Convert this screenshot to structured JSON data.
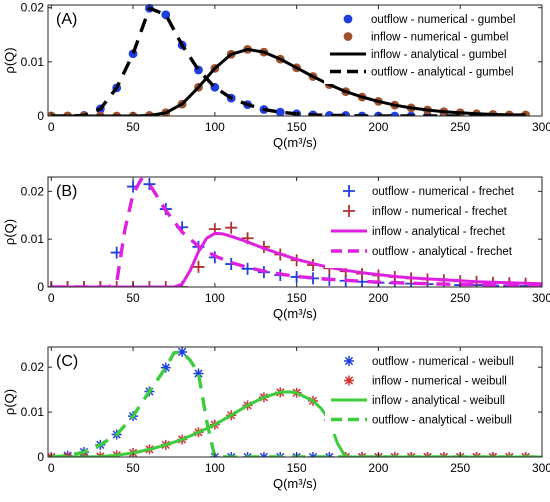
{
  "chart_data": [
    {
      "type": "line",
      "panel_label": "(A)",
      "xlabel": "Q(m³/s)",
      "ylabel": "ρ(Q)",
      "xlim": [
        -2,
        300
      ],
      "ylim": [
        0,
        0.0205
      ],
      "xticks": [
        0,
        50,
        100,
        150,
        200,
        250,
        300
      ],
      "yticks": [
        0,
        0.01,
        0.02
      ],
      "ytick_labels": [
        "0",
        "0.01",
        "0.02"
      ],
      "legend_position": "top-right",
      "series": [
        {
          "name": "outflow - numerical - gumbel",
          "kind": "marker",
          "marker": "circle",
          "color": "#1f3fe0",
          "x": [
            0,
            10,
            20,
            30,
            40,
            50,
            60,
            70,
            80,
            90,
            100,
            110,
            120,
            130,
            140,
            150,
            160,
            170,
            180,
            190,
            200,
            210,
            220,
            230,
            240,
            250,
            260,
            270,
            280,
            290
          ],
          "y": [
            0,
            0,
            0.0001,
            0.0013,
            0.0052,
            0.0115,
            0.0199,
            0.0187,
            0.0131,
            0.0085,
            0.0053,
            0.0033,
            0.0021,
            0.0012,
            0.0007,
            0.0004,
            0.0002,
            0.0001,
            0.0001,
            0,
            0,
            0,
            0,
            0,
            0,
            0,
            0,
            0,
            0,
            0
          ]
        },
        {
          "name": "inflow - numerical - gumbel",
          "kind": "marker",
          "marker": "circle",
          "color": "#a0522d",
          "x": [
            0,
            10,
            20,
            30,
            40,
            50,
            60,
            70,
            80,
            90,
            100,
            110,
            120,
            130,
            140,
            150,
            160,
            170,
            180,
            190,
            200,
            210,
            220,
            230,
            240,
            250,
            260,
            270,
            280,
            290
          ],
          "y": [
            0,
            0,
            0,
            0,
            0,
            0,
            0.0001,
            0.0006,
            0.0022,
            0.0053,
            0.0088,
            0.0114,
            0.0123,
            0.0118,
            0.0105,
            0.0089,
            0.0073,
            0.0058,
            0.0045,
            0.0035,
            0.0027,
            0.002,
            0.0015,
            0.0011,
            0.0008,
            0.0006,
            0.0004,
            0.0003,
            0.0002,
            0.0002
          ]
        },
        {
          "name": "inflow - analytical - gumbel",
          "kind": "line",
          "dash": "solid",
          "color": "#000000",
          "x": [
            0,
            10,
            20,
            30,
            40,
            50,
            60,
            70,
            80,
            90,
            100,
            110,
            120,
            130,
            140,
            150,
            160,
            170,
            180,
            190,
            200,
            210,
            220,
            230,
            240,
            250,
            260,
            270,
            280,
            290
          ],
          "y": [
            0,
            0,
            0,
            0,
            0,
            0,
            0.0001,
            0.0006,
            0.0022,
            0.0053,
            0.0088,
            0.0114,
            0.0123,
            0.0118,
            0.0105,
            0.0089,
            0.0073,
            0.0058,
            0.0045,
            0.0035,
            0.0027,
            0.002,
            0.0015,
            0.0011,
            0.0008,
            0.0006,
            0.0004,
            0.0003,
            0.0002,
            0.0002
          ]
        },
        {
          "name": "outflow - analytical - gumbel",
          "kind": "line",
          "dash": "dashed",
          "color": "#000000",
          "x": [
            0,
            10,
            20,
            30,
            40,
            50,
            60,
            70,
            80,
            90,
            100,
            110,
            120,
            130,
            140,
            150,
            160,
            170,
            180,
            190,
            200,
            210,
            220,
            230,
            240,
            250,
            260,
            270,
            280,
            290
          ],
          "y": [
            0,
            0,
            0.0001,
            0.0013,
            0.0052,
            0.0115,
            0.0199,
            0.0187,
            0.0131,
            0.0085,
            0.0053,
            0.0033,
            0.0021,
            0.0012,
            0.0007,
            0.0004,
            0.0002,
            0.0001,
            0.0001,
            0,
            0,
            0,
            0,
            0,
            0,
            0,
            0,
            0,
            0,
            0
          ]
        }
      ]
    },
    {
      "type": "line",
      "panel_label": "(B)",
      "xlabel": "Q(m³/s)",
      "ylabel": "ρ(Q)",
      "xlim": [
        -2,
        300
      ],
      "ylim": [
        0,
        0.023
      ],
      "xticks": [
        0,
        50,
        100,
        150,
        200,
        250,
        300
      ],
      "yticks": [
        0,
        0.01,
        0.02
      ],
      "ytick_labels": [
        "0",
        "0.01",
        "0.02"
      ],
      "legend_position": "top-right",
      "series": [
        {
          "name": "outflow - numerical - frechet",
          "kind": "marker",
          "marker": "plus",
          "color": "#1f3fe0",
          "x": [
            0,
            10,
            20,
            30,
            40,
            50,
            60,
            70,
            80,
            90,
            100,
            110,
            120,
            130,
            140,
            150,
            160,
            170,
            180,
            190,
            200,
            210,
            220,
            230,
            240,
            250,
            260,
            270,
            280,
            290
          ],
          "y": [
            0,
            0,
            0,
            0,
            0.0072,
            0.021,
            0.0215,
            0.0163,
            0.0125,
            0.0084,
            0.0062,
            0.0048,
            0.0038,
            0.0031,
            0.0025,
            0.0021,
            0.0018,
            0.0015,
            0.0013,
            0.0011,
            0.0009,
            0.0008,
            0.0007,
            0.0006,
            0.0005,
            0.0004,
            0.0004,
            0.0003,
            0.0003,
            0.0002
          ]
        },
        {
          "name": "inflow - numerical - frechet",
          "kind": "marker",
          "marker": "plus",
          "color": "#b03030",
          "x": [
            0,
            10,
            20,
            30,
            40,
            50,
            60,
            70,
            80,
            90,
            100,
            110,
            120,
            130,
            140,
            150,
            160,
            170,
            180,
            190,
            200,
            210,
            220,
            230,
            240,
            250,
            260,
            270,
            280,
            290
          ],
          "y": [
            0,
            0,
            0,
            0,
            0,
            0,
            0,
            0,
            0,
            0.0042,
            0.0121,
            0.0124,
            0.0102,
            0.0084,
            0.0068,
            0.0056,
            0.0046,
            0.0039,
            0.0033,
            0.0028,
            0.0024,
            0.0021,
            0.0018,
            0.0016,
            0.0014,
            0.0012,
            0.0011,
            0.0009,
            0.0008,
            0.0007
          ]
        },
        {
          "name": "inflow - analytical - frechet",
          "kind": "line",
          "dash": "solid",
          "color": "#e020e0",
          "x": [
            0,
            10,
            20,
            30,
            40,
            50,
            60,
            70,
            75,
            80,
            85,
            90,
            95,
            100,
            105,
            110,
            120,
            130,
            140,
            150,
            160,
            170,
            180,
            190,
            200,
            210,
            220,
            230,
            240,
            250,
            260,
            270,
            280,
            290,
            300
          ],
          "y": [
            0,
            0,
            0,
            0,
            0,
            0,
            0,
            0,
            0,
            0.0006,
            0.0035,
            0.0074,
            0.0102,
            0.0112,
            0.0111,
            0.0106,
            0.0094,
            0.0081,
            0.0069,
            0.0058,
            0.0049,
            0.0041,
            0.0035,
            0.003,
            0.0026,
            0.0022,
            0.0019,
            0.0017,
            0.0015,
            0.0013,
            0.0011,
            0.001,
            0.0009,
            0.0008,
            0.0007
          ]
        },
        {
          "name": "outflow - analytical - frechet",
          "kind": "line",
          "dash": "dashed",
          "color": "#e020e0",
          "x": [
            0,
            10,
            20,
            30,
            35,
            40,
            45,
            50,
            55,
            60,
            65,
            70,
            80,
            90,
            100,
            110,
            120,
            130,
            140,
            150,
            160,
            170,
            180,
            190,
            200,
            210,
            220,
            230,
            240,
            250,
            260,
            270,
            280,
            290,
            300
          ],
          "y": [
            0,
            0,
            0,
            0,
            0,
            0.001,
            0.012,
            0.0195,
            0.0225,
            0.0215,
            0.0188,
            0.016,
            0.0115,
            0.0085,
            0.0065,
            0.0051,
            0.0041,
            0.0033,
            0.0027,
            0.0022,
            0.0019,
            0.0016,
            0.0014,
            0.0012,
            0.001,
            0.0009,
            0.0008,
            0.0007,
            0.0006,
            0.0005,
            0.0005,
            0.0004,
            0.0004,
            0.0003,
            0.0003
          ]
        }
      ]
    },
    {
      "type": "line",
      "panel_label": "(C)",
      "xlabel": "Q(m³/s)",
      "ylabel": "ρ(Q)",
      "xlim": [
        -2,
        300
      ],
      "ylim": [
        0,
        0.0245
      ],
      "xticks": [
        0,
        50,
        100,
        150,
        200,
        250,
        300
      ],
      "yticks": [
        0,
        0.01,
        0.02
      ],
      "ytick_labels": [
        "0",
        "0.01",
        "0.02"
      ],
      "legend_position": "top-right",
      "series": [
        {
          "name": "outflow - numerical - weibull",
          "kind": "marker",
          "marker": "asterisk",
          "color": "#1f3fe0",
          "x": [
            0,
            10,
            20,
            30,
            40,
            50,
            60,
            70,
            80,
            90,
            100,
            110,
            120,
            130,
            140,
            150,
            160,
            170,
            180,
            190,
            200,
            210,
            220,
            230,
            240,
            250,
            260,
            270,
            280,
            290
          ],
          "y": [
            0,
            0.0003,
            0.0011,
            0.0027,
            0.005,
            0.0091,
            0.0146,
            0.0199,
            0.0234,
            0.0186,
            0,
            0,
            0,
            0,
            0,
            0,
            0,
            0,
            0,
            0,
            0,
            0,
            0,
            0,
            0,
            0,
            0,
            0,
            0,
            0
          ]
        },
        {
          "name": "inflow - numerical - weibull",
          "kind": "marker",
          "marker": "asterisk",
          "color": "#d03030",
          "x": [
            0,
            10,
            20,
            30,
            40,
            50,
            60,
            70,
            80,
            90,
            100,
            110,
            120,
            130,
            140,
            150,
            160,
            170,
            180,
            190,
            200,
            210,
            220,
            230,
            240,
            250,
            260,
            270,
            280,
            290
          ],
          "y": [
            0,
            0,
            0,
            0.0001,
            0.0004,
            0.0009,
            0.0017,
            0.0027,
            0.0039,
            0.0055,
            0.0072,
            0.0093,
            0.0115,
            0.0133,
            0.0144,
            0.0143,
            0.0125,
            0.0082,
            0,
            0,
            0,
            0,
            0,
            0,
            0,
            0,
            0,
            0,
            0,
            0
          ]
        },
        {
          "name": "inflow - analytical - weibull",
          "kind": "line",
          "dash": "solid",
          "color": "#3ccc3c",
          "x": [
            0,
            10,
            20,
            30,
            40,
            50,
            60,
            70,
            80,
            90,
            100,
            110,
            120,
            130,
            140,
            145,
            150,
            160,
            165,
            170,
            175,
            180,
            190,
            200,
            210,
            220,
            230,
            240,
            250,
            260,
            270,
            280,
            290,
            300
          ],
          "y": [
            0,
            0,
            0,
            0.0001,
            0.0004,
            0.0009,
            0.0017,
            0.0027,
            0.0039,
            0.0055,
            0.0072,
            0.0093,
            0.0115,
            0.0133,
            0.0144,
            0.0145,
            0.0143,
            0.0125,
            0.0108,
            0.0082,
            0.003,
            0,
            0,
            0,
            0,
            0,
            0,
            0,
            0,
            0,
            0,
            0,
            0,
            0
          ]
        },
        {
          "name": "outflow - analytical - weibull",
          "kind": "line",
          "dash": "dashed",
          "color": "#3ccc3c",
          "x": [
            0,
            10,
            20,
            30,
            40,
            50,
            60,
            70,
            75,
            80,
            85,
            90,
            95,
            100,
            110,
            120,
            130,
            140,
            150,
            160,
            170,
            180,
            190,
            200,
            210,
            220,
            230,
            240,
            250,
            260,
            270,
            280,
            290,
            300
          ],
          "y": [
            0,
            0.0003,
            0.0011,
            0.0027,
            0.005,
            0.0091,
            0.0146,
            0.0199,
            0.0232,
            0.0234,
            0.0215,
            0.0186,
            0.008,
            0,
            0,
            0,
            0,
            0,
            0,
            0,
            0,
            0,
            0,
            0,
            0,
            0,
            0,
            0,
            0,
            0,
            0,
            0,
            0,
            0
          ]
        }
      ]
    }
  ]
}
